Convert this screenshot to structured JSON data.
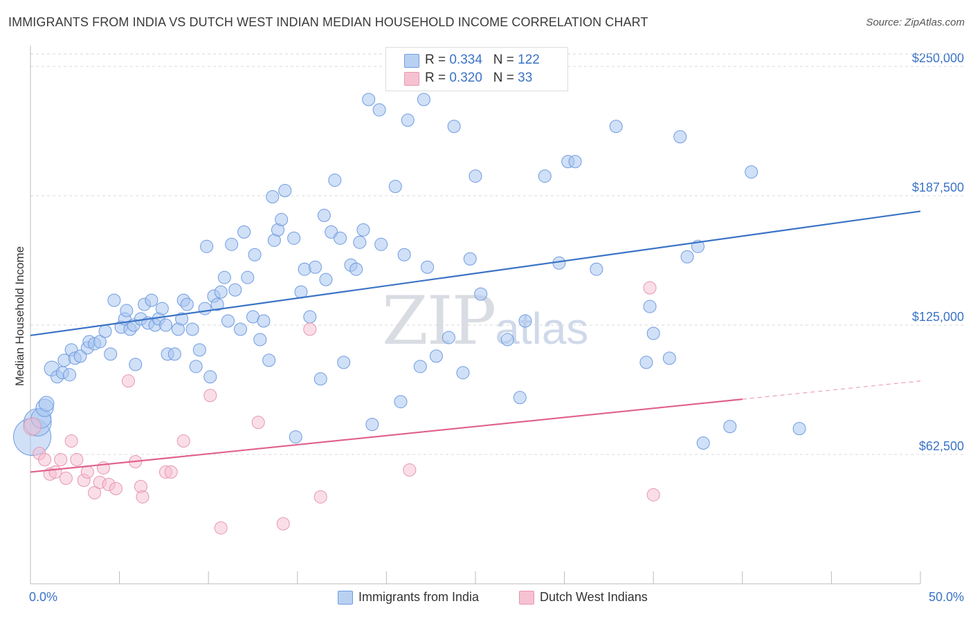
{
  "title": "IMMIGRANTS FROM INDIA VS DUTCH WEST INDIAN MEDIAN HOUSEHOLD INCOME CORRELATION CHART",
  "source": "Source: ZipAtlas.com",
  "watermark": {
    "zip": "ZIP",
    "atlas": "atlas"
  },
  "colors": {
    "blue": "#3a73c6",
    "blue_fill": "#b9d1f1",
    "pink": "#e0608c",
    "pink_fill": "#f6c2d2",
    "grid": "#d8d8d8"
  },
  "legend": {
    "rows": [
      {
        "r_label": "R = ",
        "r": "0.334",
        "n_label": "N = ",
        "n": "122"
      },
      {
        "r_label": "R = ",
        "r": "0.320",
        "n_label": "N = ",
        "n": "33"
      }
    ]
  },
  "bottom_legend": [
    "Immigrants from India",
    "Dutch West Indians"
  ],
  "chart_data": {
    "type": "scatter",
    "ylabel": "Median Household Income",
    "xlim": [
      0,
      50
    ],
    "ylim": [
      0,
      265000
    ],
    "x_tick_labels": [
      {
        "v": 0,
        "label": "0.0%"
      },
      {
        "v": 50,
        "label": "50.0%"
      }
    ],
    "y_ticks": [
      {
        "v": 62500,
        "label": "$62,500"
      },
      {
        "v": 125000,
        "label": "$125,000"
      },
      {
        "v": 187500,
        "label": "$187,500"
      },
      {
        "v": 250000,
        "label": "$250,000"
      }
    ],
    "x_minor_ticks": [
      0,
      5,
      10,
      15,
      20,
      25,
      30,
      35,
      40,
      45,
      50
    ],
    "grid": true,
    "series": [
      {
        "name": "Immigrants from India",
        "color": "#3a73c6",
        "trend": {
          "x": [
            0,
            50
          ],
          "y": [
            120000,
            180000
          ],
          "solid_to": 50
        },
        "points": [
          [
            0.1,
            71000,
            3
          ],
          [
            0.4,
            78000,
            2.2
          ],
          [
            0.6,
            80000,
            1.6
          ],
          [
            0.8,
            85000,
            1.4
          ],
          [
            0.9,
            87000,
            1.2
          ],
          [
            1.2,
            104000,
            1.2
          ],
          [
            1.5,
            100000,
            1
          ],
          [
            1.8,
            102000,
            1
          ],
          [
            1.9,
            108000,
            1
          ],
          [
            2.2,
            101000,
            1
          ],
          [
            2.3,
            113000,
            1
          ],
          [
            2.5,
            109000,
            1
          ],
          [
            2.8,
            110000,
            1
          ],
          [
            3.2,
            114000,
            1
          ],
          [
            3.3,
            117000,
            1
          ],
          [
            3.6,
            116000,
            1
          ],
          [
            3.9,
            117000,
            1
          ],
          [
            4.2,
            122000,
            1
          ],
          [
            4.5,
            111000,
            1
          ],
          [
            4.7,
            137000,
            1
          ],
          [
            5.1,
            124000,
            1
          ],
          [
            5.3,
            128000,
            1
          ],
          [
            5.4,
            132000,
            1
          ],
          [
            5.6,
            123000,
            1
          ],
          [
            5.8,
            125000,
            1
          ],
          [
            5.9,
            106000,
            1
          ],
          [
            6.2,
            128000,
            1
          ],
          [
            6.4,
            135000,
            1
          ],
          [
            6.6,
            126000,
            1
          ],
          [
            6.8,
            137000,
            1
          ],
          [
            7.0,
            125000,
            1
          ],
          [
            7.2,
            128000,
            1
          ],
          [
            7.4,
            133000,
            1
          ],
          [
            7.6,
            125000,
            1
          ],
          [
            7.7,
            111000,
            1
          ],
          [
            8.1,
            111000,
            1
          ],
          [
            8.3,
            123000,
            1
          ],
          [
            8.5,
            128000,
            1
          ],
          [
            8.6,
            137000,
            1
          ],
          [
            8.8,
            135000,
            1
          ],
          [
            9.1,
            123000,
            1
          ],
          [
            9.3,
            105000,
            1
          ],
          [
            9.5,
            113000,
            1
          ],
          [
            9.8,
            133000,
            1
          ],
          [
            9.9,
            163000,
            1
          ],
          [
            10.1,
            100000,
            1
          ],
          [
            10.3,
            139000,
            1
          ],
          [
            10.5,
            135000,
            1
          ],
          [
            10.7,
            141000,
            1
          ],
          [
            10.9,
            148000,
            1
          ],
          [
            11.1,
            127000,
            1
          ],
          [
            11.3,
            164000,
            1
          ],
          [
            11.5,
            142000,
            1
          ],
          [
            11.8,
            123000,
            1
          ],
          [
            12.0,
            170000,
            1
          ],
          [
            12.2,
            148000,
            1
          ],
          [
            12.5,
            129000,
            1
          ],
          [
            12.6,
            159000,
            1
          ],
          [
            12.9,
            118000,
            1
          ],
          [
            13.1,
            127000,
            1
          ],
          [
            13.4,
            108000,
            1
          ],
          [
            13.6,
            187000,
            1
          ],
          [
            13.7,
            166000,
            1
          ],
          [
            13.9,
            171000,
            1
          ],
          [
            14.1,
            176000,
            1
          ],
          [
            14.3,
            190000,
            1
          ],
          [
            14.8,
            167000,
            1
          ],
          [
            14.9,
            71000,
            1
          ],
          [
            15.2,
            141000,
            1
          ],
          [
            15.4,
            152000,
            1
          ],
          [
            15.7,
            129000,
            1
          ],
          [
            16.0,
            153000,
            1
          ],
          [
            16.3,
            99000,
            1
          ],
          [
            16.5,
            178000,
            1
          ],
          [
            16.6,
            147000,
            1
          ],
          [
            16.9,
            170000,
            1
          ],
          [
            17.1,
            195000,
            1
          ],
          [
            17.4,
            167000,
            1
          ],
          [
            17.6,
            107000,
            1
          ],
          [
            18.0,
            154000,
            1
          ],
          [
            18.3,
            152000,
            1
          ],
          [
            18.5,
            165000,
            1
          ],
          [
            18.7,
            171000,
            1
          ],
          [
            19.0,
            234000,
            1
          ],
          [
            19.2,
            77000,
            1
          ],
          [
            19.6,
            229000,
            1
          ],
          [
            19.7,
            164000,
            1
          ],
          [
            20.5,
            192000,
            1
          ],
          [
            20.8,
            88000,
            1
          ],
          [
            21.0,
            159000,
            1
          ],
          [
            21.2,
            224000,
            1
          ],
          [
            21.9,
            105000,
            1
          ],
          [
            22.1,
            234000,
            1
          ],
          [
            22.3,
            153000,
            1
          ],
          [
            22.8,
            110000,
            1
          ],
          [
            23.5,
            119000,
            1
          ],
          [
            23.8,
            221000,
            1
          ],
          [
            24.3,
            102000,
            1
          ],
          [
            24.7,
            157000,
            1
          ],
          [
            25.0,
            197000,
            1
          ],
          [
            25.3,
            140000,
            1
          ],
          [
            26.8,
            118000,
            1
          ],
          [
            27.5,
            90000,
            1
          ],
          [
            27.8,
            127000,
            1
          ],
          [
            28.9,
            197000,
            1
          ],
          [
            29.7,
            155000,
            1
          ],
          [
            30.2,
            204000,
            1
          ],
          [
            30.6,
            204000,
            1
          ],
          [
            31.8,
            152000,
            1
          ],
          [
            32.9,
            221000,
            1
          ],
          [
            34.6,
            107000,
            1
          ],
          [
            34.8,
            134000,
            1
          ],
          [
            35.0,
            121000,
            1
          ],
          [
            35.9,
            109000,
            1
          ],
          [
            36.5,
            216000,
            1
          ],
          [
            36.9,
            158000,
            1
          ],
          [
            37.5,
            163000,
            1
          ],
          [
            37.8,
            68000,
            1
          ],
          [
            39.3,
            76000,
            1
          ],
          [
            40.5,
            199000,
            1
          ],
          [
            43.2,
            75000,
            1
          ]
        ]
      },
      {
        "name": "Dutch West Indians",
        "color": "#e0608c",
        "trend": {
          "x": [
            0,
            50
          ],
          "y": [
            54000,
            98000
          ],
          "solid_to": 40
        },
        "points": [
          [
            0.1,
            76000,
            1.4
          ],
          [
            0.5,
            63000,
            1
          ],
          [
            0.8,
            60000,
            1
          ],
          [
            1.1,
            53000,
            1
          ],
          [
            1.4,
            54000,
            1
          ],
          [
            1.7,
            60000,
            1
          ],
          [
            2.0,
            51000,
            1
          ],
          [
            2.3,
            69000,
            1
          ],
          [
            2.6,
            60000,
            1
          ],
          [
            3.0,
            50000,
            1
          ],
          [
            3.2,
            54000,
            1
          ],
          [
            3.6,
            44000,
            1
          ],
          [
            3.9,
            49000,
            1
          ],
          [
            4.1,
            56000,
            1
          ],
          [
            4.4,
            48000,
            1
          ],
          [
            4.8,
            46000,
            1
          ],
          [
            5.5,
            98000,
            1
          ],
          [
            5.9,
            59000,
            1
          ],
          [
            6.2,
            47000,
            1
          ],
          [
            6.3,
            42000,
            1
          ],
          [
            7.6,
            54000,
            1
          ],
          [
            7.9,
            54000,
            1
          ],
          [
            8.6,
            69000,
            1
          ],
          [
            10.1,
            91000,
            1
          ],
          [
            10.7,
            27000,
            1
          ],
          [
            12.8,
            78000,
            1
          ],
          [
            14.2,
            29000,
            1
          ],
          [
            15.7,
            123000,
            1
          ],
          [
            16.3,
            42000,
            1
          ],
          [
            21.3,
            55000,
            1
          ],
          [
            34.8,
            143000,
            1
          ],
          [
            35.0,
            43000,
            1
          ]
        ]
      }
    ]
  }
}
